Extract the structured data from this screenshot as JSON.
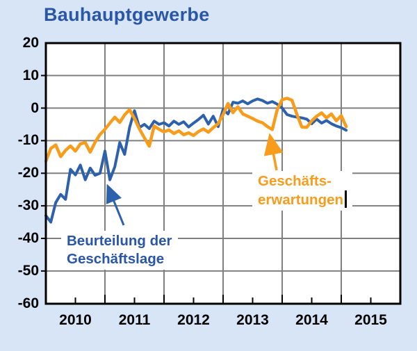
{
  "title": "Bauhauptgewerbe",
  "colors": {
    "background": "#D7E5F7",
    "plot_background": "#FFFFFF",
    "border": "#000000",
    "gridline": "#7F7F7F",
    "blue_series": "#2E61AB",
    "blue_text": "#2956A6",
    "orange_series": "#F89C1B",
    "axis_text": "#000000"
  },
  "axes": {
    "y_tick_labels": [
      "20",
      "10",
      "0",
      "-10",
      "-20",
      "-30",
      "-40",
      "-50",
      "-60"
    ],
    "x_tick_labels": [
      "2010",
      "2011",
      "2012",
      "2013",
      "2014",
      "2015"
    ]
  },
  "annotations": {
    "lage": {
      "line1": "Beurteilung der",
      "line2": "Geschäftslage"
    },
    "erwartungen": {
      "line1": "Geschäfts-",
      "line2": "erwartungen"
    }
  },
  "chart_data": {
    "type": "line",
    "title": "Bauhauptgewerbe",
    "frequency": "monthly",
    "x_start": "2010-01",
    "x_end": "2015-02",
    "ylim": [
      -60,
      20
    ],
    "y_gridline_step": 10,
    "x_axis_years": [
      "2010",
      "2011",
      "2012",
      "2013",
      "2014",
      "2015"
    ],
    "grid": true,
    "legend_position": "inline-annotations-with-arrows",
    "series": [
      {
        "name": "Beurteilung der Geschäftslage",
        "color": "#2E61AB",
        "values": [
          -33,
          -35,
          -29,
          -26.5,
          -28,
          -18.8,
          -20.5,
          -17.5,
          -22,
          -18.4,
          -20.6,
          -20,
          -13.2,
          -22,
          -18,
          -10.6,
          -14.2,
          -6,
          -0.8,
          -6,
          -5,
          -6.3,
          -4,
          -5,
          -4.5,
          -5.5,
          -4,
          -5,
          -4.2,
          -5.8,
          -4.6,
          -3.5,
          -2.2,
          -4.9,
          -2.5,
          -5.7,
          -0.4,
          -1.8,
          1.8,
          1.5,
          2.2,
          1.3,
          2.2,
          2.8,
          2.3,
          1.5,
          2,
          1.2,
          0,
          -2,
          -2.5,
          -2.8,
          -3,
          -3.4,
          -4.8,
          -3.4,
          -4.6,
          -3.8,
          -4.8,
          -5.5,
          -6,
          -6.8
        ]
      },
      {
        "name": "Geschäftserwartungen",
        "color": "#F89C1B",
        "values": [
          -16.3,
          -12.4,
          -11.3,
          -14.9,
          -13,
          -11.6,
          -13.2,
          -11,
          -10.6,
          -13.5,
          -10.5,
          -8.1,
          -6.5,
          -4.6,
          -2.8,
          -4.4,
          -2.1,
          -0.5,
          -3.2,
          -6.4,
          -9.1,
          -11.7,
          -5.5,
          -6.5,
          -7.3,
          -6.7,
          -7.8,
          -7,
          -8.2,
          -7.6,
          -8.4,
          -7.2,
          -6.4,
          -7.4,
          -6,
          -4.8,
          -2,
          1.4,
          -1.4,
          0.4,
          -1.8,
          -2.5,
          -3.2,
          -4,
          -4.5,
          -5.7,
          -6.6,
          -0.5,
          2.6,
          3,
          2.4,
          -2,
          -5.8,
          -5.9,
          -3.9,
          -2.5,
          -1.5,
          -3,
          -1.8,
          -3.9,
          -2.3,
          -5.7
        ]
      }
    ]
  }
}
